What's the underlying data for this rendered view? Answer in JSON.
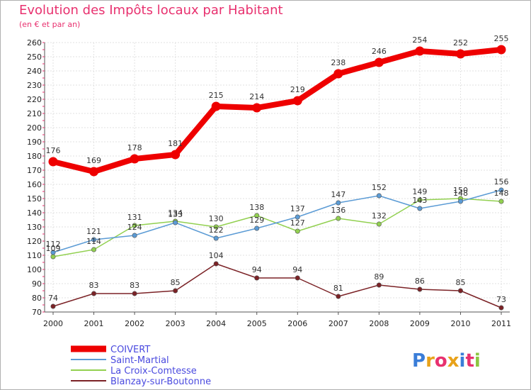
{
  "title": "Evolution des Impôts locaux par Habitant",
  "subtitle": "(en € et par an)",
  "logo": "Proxiti",
  "colors": {
    "title": "#e8316f",
    "legend_text": "#4a4adf"
  },
  "chart_data": {
    "type": "line",
    "title": "Evolution des Impôts locaux par Habitant",
    "subtitle": "(en € et par an)",
    "x": [
      "2000",
      "2001",
      "2002",
      "2003",
      "2004",
      "2005",
      "2006",
      "2007",
      "2008",
      "2009",
      "2010",
      "2011"
    ],
    "ylim": [
      70,
      260
    ],
    "yticks": [
      70,
      80,
      90,
      100,
      110,
      120,
      130,
      140,
      150,
      160,
      170,
      180,
      190,
      200,
      210,
      220,
      230,
      240,
      250,
      260
    ],
    "grid": true,
    "legend_position": "bottom-left",
    "series": [
      {
        "name": "COIVERT",
        "color": "#ee0000",
        "values": [
          176,
          169,
          178,
          181,
          215,
          214,
          219,
          238,
          246,
          254,
          252,
          255
        ],
        "labels": [
          "176",
          "169",
          "178",
          "181",
          "215",
          "214",
          "219",
          "238",
          "246",
          "254",
          "252",
          "255"
        ]
      },
      {
        "name": "Saint-Martial",
        "color": "#5b9bd5",
        "values": [
          112,
          121,
          124,
          133,
          122,
          129,
          137,
          147,
          152,
          143,
          148,
          156
        ],
        "labels": [
          "112",
          "121",
          "124",
          "133",
          "122",
          "129",
          "137",
          "147",
          "152",
          "143",
          "148",
          "156"
        ]
      },
      {
        "name": "La Croix-Comtesse",
        "color": "#92d050",
        "values": [
          109,
          114,
          131,
          134,
          130,
          138,
          127,
          136,
          132,
          149,
          150,
          148
        ],
        "labels": [
          "109",
          "114",
          "131",
          "134",
          "130",
          "138",
          "127",
          "136",
          "132",
          "149",
          "150",
          "148"
        ]
      },
      {
        "name": "Blanzay-sur-Boutonne",
        "color": "#7b2226",
        "values": [
          74,
          83,
          83,
          85,
          104,
          94,
          94,
          81,
          89,
          86,
          85,
          73
        ],
        "labels": [
          "74",
          "83",
          "83",
          "85",
          "104",
          "94",
          "94",
          "81",
          "89",
          "86",
          "85",
          "73"
        ]
      }
    ]
  }
}
